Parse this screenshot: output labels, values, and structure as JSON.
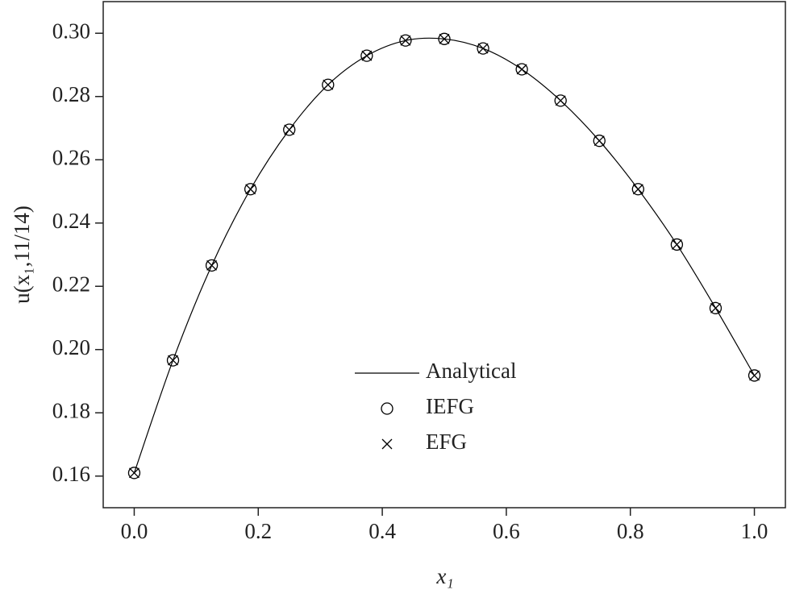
{
  "chart_data": {
    "type": "line",
    "xlabel": "x₁",
    "ylabel": "u(x₁,11/14)",
    "x": [
      0,
      0.0625,
      0.125,
      0.1875,
      0.25,
      0.3125,
      0.375,
      0.4375,
      0.5,
      0.5625,
      0.625,
      0.6875,
      0.75,
      0.8125,
      0.875,
      0.9375,
      1.0
    ],
    "series": [
      {
        "name": "Analytical",
        "color": "#000000",
        "marker": "line",
        "values": [
          0.161,
          0.1966,
          0.2266,
          0.2507,
          0.2695,
          0.2837,
          0.2929,
          0.2977,
          0.2982,
          0.2952,
          0.2886,
          0.2787,
          0.266,
          0.2507,
          0.2332,
          0.2131,
          0.1918
        ]
      },
      {
        "name": "IEFG",
        "color": "#000000",
        "marker": "circle",
        "values": [
          0.161,
          0.1966,
          0.2266,
          0.2507,
          0.2695,
          0.2837,
          0.2929,
          0.2977,
          0.2982,
          0.2952,
          0.2886,
          0.2787,
          0.266,
          0.2507,
          0.2332,
          0.2131,
          0.1918
        ]
      },
      {
        "name": "EFG",
        "color": "#000000",
        "marker": "x",
        "values": [
          0.161,
          0.1966,
          0.2266,
          0.2507,
          0.2695,
          0.2837,
          0.2929,
          0.2977,
          0.2982,
          0.2952,
          0.2886,
          0.2787,
          0.266,
          0.2507,
          0.2332,
          0.2131,
          0.1918
        ]
      }
    ],
    "xlim": [
      -0.05,
      1.05
    ],
    "ylim": [
      0.15,
      0.31
    ],
    "xticks": [
      {
        "value": 0,
        "label": "0.0"
      },
      0.2,
      0.4,
      0.6,
      0.8,
      {
        "value": 1,
        "label": "1.0"
      }
    ],
    "yticks": [
      0.16,
      {
        "value": 0.18,
        "label": "0.18"
      },
      {
        "value": 0.2,
        "label": "0.20"
      },
      0.22,
      0.24,
      0.26,
      0.28,
      {
        "value": 0.3,
        "label": "0.30"
      }
    ],
    "grid": false
  }
}
